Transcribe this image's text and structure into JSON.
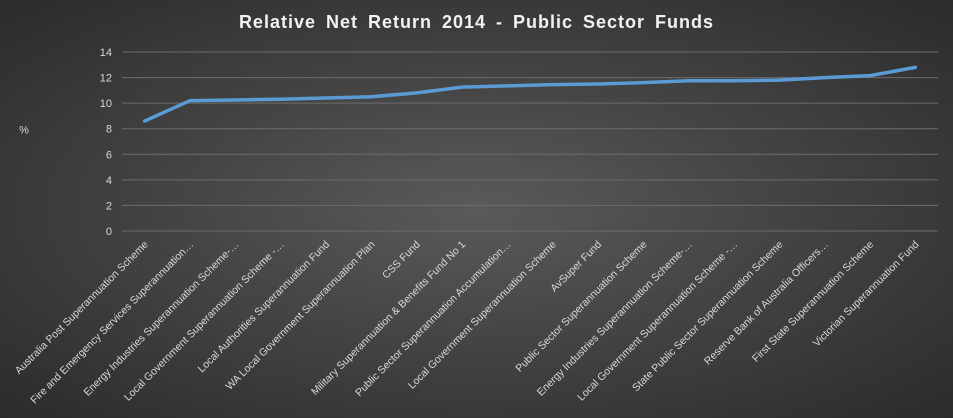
{
  "chart_data": {
    "type": "line",
    "title": "Relative Net Return  2014 - Public Sector Funds",
    "xlabel": "",
    "ylabel": "%",
    "ylim": [
      0,
      14
    ],
    "yticks": [
      0,
      2,
      4,
      6,
      8,
      10,
      12,
      14
    ],
    "grid": true,
    "legend": "none",
    "categories": [
      "Australia Post Superannuation Scheme",
      "Fire and Emergency Services Superannuation…",
      "Energy Industries Superannuation Scheme-…",
      "Local Government Superannuation Scheme -…",
      "Local Authorities Superannuation Fund",
      "WA Local Government Superannuation Plan",
      "CSS Fund",
      "Military Superannuation & Benefits Fund No 1",
      "Public Sector Superannuation Accumulation…",
      "Local Government Superannuation Scheme",
      "AvSuper Fund",
      "Public Sector Superannuation Scheme",
      "Energy Industries Superannuation Scheme-…",
      "Local Government Superannuation Scheme -…",
      "State Public Sector Superannuation Scheme",
      "Reserve Bank of Australia Officers…",
      "First State Superannuation Scheme",
      "Victorian Superannuation Fund"
    ],
    "series": [
      {
        "values": [
          8.6,
          10.2,
          10.25,
          10.3,
          10.4,
          10.5,
          10.8,
          11.25,
          11.35,
          11.45,
          11.5,
          11.6,
          11.75,
          11.75,
          11.8,
          12.0,
          12.15,
          12.8
        ]
      }
    ],
    "colors": {
      "line": "#5b9bd5",
      "grid": "#6c6c6c",
      "text": "#d9d9d9",
      "title": "#f2f2f2"
    }
  }
}
